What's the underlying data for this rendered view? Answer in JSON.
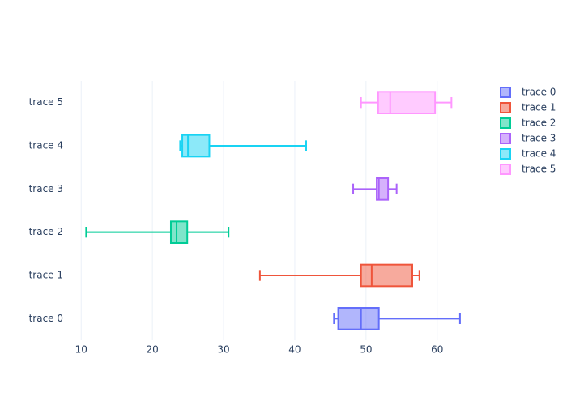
{
  "chart_data": {
    "type": "box",
    "orientation": "horizontal",
    "series": [
      {
        "name": "trace 0",
        "color": "#636efa",
        "min": 45.5,
        "q1": 46.1,
        "median": 49.3,
        "q3": 51.8,
        "max": 63.2
      },
      {
        "name": "trace 1",
        "color": "#ef553b",
        "min": 35.1,
        "q1": 49.3,
        "median": 50.8,
        "q3": 56.5,
        "max": 57.5
      },
      {
        "name": "trace 2",
        "color": "#00cc96",
        "min": 10.7,
        "q1": 22.6,
        "median": 23.4,
        "q3": 24.9,
        "max": 30.7
      },
      {
        "name": "trace 3",
        "color": "#ab63fa",
        "min": 48.2,
        "q1": 51.5,
        "median": 51.8,
        "q3": 53.1,
        "max": 54.3
      },
      {
        "name": "trace 4",
        "color": "#19d3f3",
        "min": 23.9,
        "q1": 24.2,
        "median": 25.0,
        "q3": 28.0,
        "max": 41.6
      },
      {
        "name": "trace 5",
        "color": "#ff97ff",
        "min": 49.3,
        "q1": 51.7,
        "median": 53.4,
        "q3": 59.7,
        "max": 62.0
      }
    ],
    "xlim": [
      7.7,
      65.6
    ],
    "xticks": [
      10,
      20,
      30,
      40,
      50,
      60
    ],
    "grid": true,
    "legend": "top-right"
  }
}
